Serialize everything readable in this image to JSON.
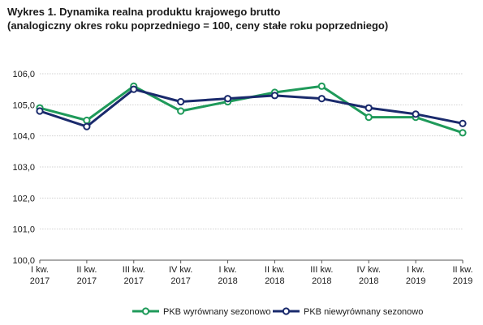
{
  "title": {
    "line1": "Wykres 1. Dynamika realna produktu krajowego brutto",
    "line2": "(analogiczny okres roku poprzedniego = 100, ceny stałe roku poprzedniego)"
  },
  "colors": {
    "green": "#1f9a5a",
    "navy": "#1a2a6c",
    "grid": "#d0d0d0",
    "axis": "#555555"
  },
  "chart_data": {
    "type": "line",
    "title": "",
    "xlabel": "",
    "ylabel": "",
    "ylim": [
      100,
      106
    ],
    "yticks": [
      "100,0",
      "101,0",
      "102,0",
      "103,0",
      "104,0",
      "105,0",
      "106,0"
    ],
    "categories": [
      [
        "I kw.",
        "2017"
      ],
      [
        "II kw.",
        "2017"
      ],
      [
        "III kw.",
        "2017"
      ],
      [
        "IV kw.",
        "2017"
      ],
      [
        "I kw.",
        "2018"
      ],
      [
        "II kw.",
        "2018"
      ],
      [
        "III kw.",
        "2018"
      ],
      [
        "IV kw.",
        "2018"
      ],
      [
        "I kw.",
        "2019"
      ],
      [
        "II kw.",
        "2019"
      ]
    ],
    "grid": true,
    "legend_position": "bottom",
    "series": [
      {
        "name": "PKB wyrównany sezonowo",
        "color": "#1f9a5a",
        "values": [
          104.9,
          104.5,
          105.6,
          104.8,
          105.1,
          105.4,
          105.6,
          104.6,
          104.6,
          104.1
        ]
      },
      {
        "name": "PKB niewyrównany sezonowo",
        "color": "#1a2a6c",
        "values": [
          104.8,
          104.3,
          105.5,
          105.1,
          105.2,
          105.3,
          105.2,
          104.9,
          104.7,
          104.4
        ]
      }
    ]
  }
}
